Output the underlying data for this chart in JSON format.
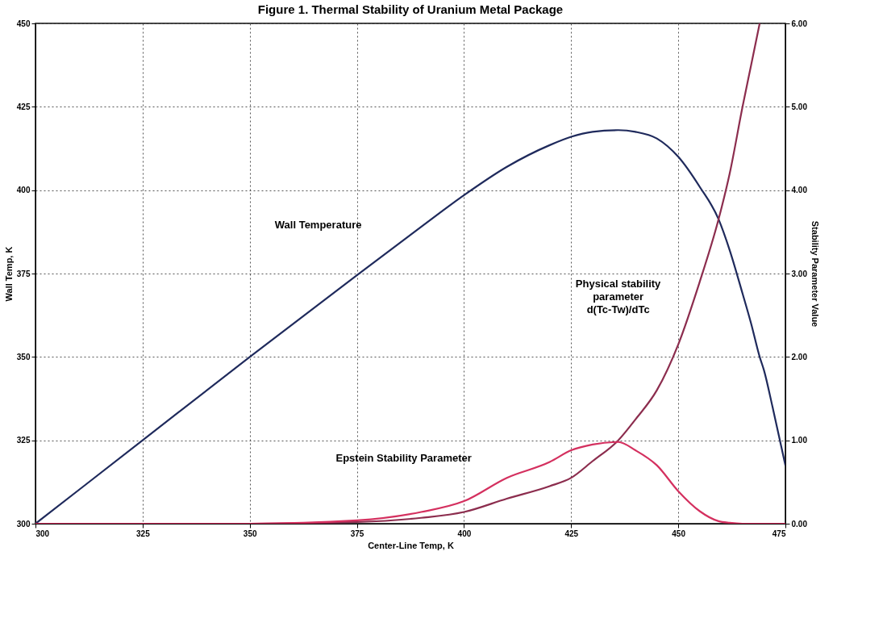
{
  "chart_data": {
    "type": "line",
    "title": "Figure 1. Thermal Stability of Uranium Metal Package",
    "xlabel": "Center-Line Temp, K",
    "ylabel": "Wall Temp, K",
    "y2label": "Stability Parameter Value",
    "x": [
      300,
      325,
      350,
      375,
      390,
      400,
      410,
      420,
      425,
      430,
      436,
      440,
      445,
      450,
      455,
      459.4,
      462,
      465,
      467,
      469,
      470,
      472,
      475
    ],
    "series": [
      {
        "color": "#1f2a5c",
        "values": [
          300,
          325,
          350,
          374.5,
          389,
          398.5,
          407,
          413.5,
          416,
          417.5,
          418,
          417.5,
          415.5,
          410,
          401,
          391.3,
          382,
          369,
          360,
          350,
          346,
          335,
          317.5
        ]
      },
      {
        "color": "#8c2d4e",
        "axis": "y2",
        "values": [
          0,
          0,
          0,
          0.02,
          0.07,
          0.14,
          0.3,
          0.45,
          0.55,
          0.75,
          1.0,
          1.25,
          1.6,
          2.15,
          2.9,
          3.65,
          4.2,
          5.0,
          5.5,
          6.0,
          null,
          null,
          null
        ]
      },
      {
        "color": "#d4305f",
        "axis": "y2",
        "values": [
          0,
          0,
          0,
          0.04,
          0.14,
          0.27,
          0.55,
          0.74,
          0.88,
          0.95,
          0.98,
          0.88,
          0.7,
          0.39,
          0.15,
          0.03,
          0.01,
          0,
          0,
          0,
          0,
          0,
          0
        ]
      }
    ],
    "xlim": [
      300,
      475
    ],
    "xticks": [
      300,
      325,
      350,
      375,
      400,
      425,
      450,
      475
    ],
    "ylim": [
      300,
      450
    ],
    "yticks": [
      300,
      325,
      350,
      375,
      400,
      425,
      450
    ],
    "y2lim": [
      0,
      6
    ],
    "y2ticks": [
      {
        "value": 0,
        "label": "0.00"
      },
      {
        "value": 1,
        "label": "1.00"
      },
      {
        "value": 2,
        "label": "2.00"
      },
      {
        "value": 3,
        "label": "3.00"
      },
      {
        "value": 4,
        "label": "4.00"
      },
      {
        "value": 5,
        "label": "5.00"
      },
      {
        "value": 6,
        "label": "6.00"
      }
    ],
    "annotations": [
      "Wall Temperature",
      "Physical stability parameter d(Tc-Tw)/dTc",
      "Epstein Stability Parameter"
    ],
    "grid": true,
    "legend": false,
    "line_style": "solid",
    "marker": "none"
  }
}
